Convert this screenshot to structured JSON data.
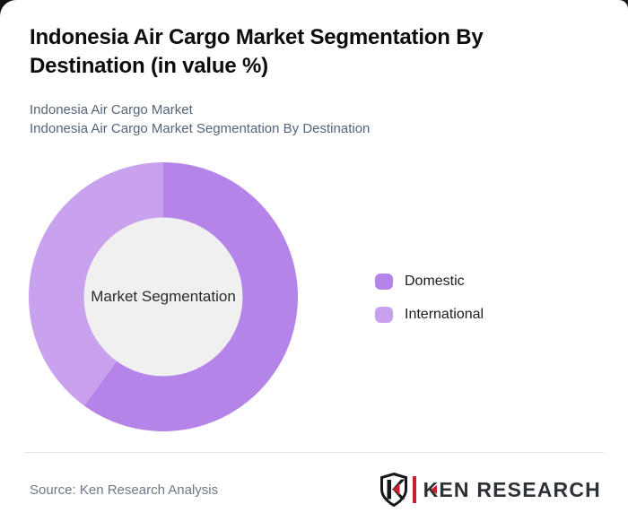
{
  "frame": {
    "background_color": "#141414",
    "card_background_color": "#ffffff"
  },
  "header": {
    "title_line1": "Indonesia Air Cargo Market Segmentation By",
    "title_line2": "Destination (in value %)"
  },
  "subtitle": {
    "line1": "Indonesia Air Cargo Market",
    "line2": "Indonesia Air Cargo Market Segmentation By Destination"
  },
  "chart_data": {
    "type": "pie",
    "variant": "donut",
    "title": "Indonesia Air Cargo Market Segmentation By Destination (in value %)",
    "labels": [
      "Domestic",
      "International"
    ],
    "values": [
      60,
      40
    ],
    "unit": "%",
    "colors": [
      "#b584e8",
      "#c9a2ee"
    ],
    "start_angle_deg": 0,
    "direction": "clockwise",
    "inner_radius_ratio": 0.59,
    "inner_circle_color": "#f0f0f1",
    "center_label": "Market Segmentation",
    "legend_position": "right",
    "data_labels_shown": false
  },
  "footer": {
    "source": "Source: Ken Research Analysis",
    "logo": {
      "text_k": "K",
      "text_rest": "EN RESEARCH",
      "accent_color": "#c8202f",
      "text_color": "#2d3237"
    }
  }
}
